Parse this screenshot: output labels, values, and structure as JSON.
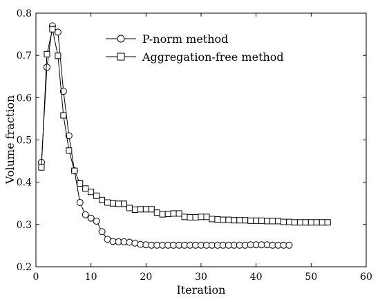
{
  "chart_data": {
    "type": "line",
    "xlabel": "Iteration",
    "ylabel": "Volume fraction",
    "xlim": [
      0,
      60
    ],
    "ylim": [
      0.2,
      0.8
    ],
    "xticks": [
      0,
      10,
      20,
      30,
      40,
      50,
      60
    ],
    "yticks": [
      0.2,
      0.3,
      0.4,
      0.5,
      0.6,
      0.7,
      0.8
    ],
    "grid": false,
    "legend_position": "top-right",
    "series": [
      {
        "name": "P-norm method",
        "marker": "circle",
        "x": [
          1,
          2,
          3,
          4,
          5,
          6,
          7,
          8,
          9,
          10,
          11,
          12,
          13,
          14,
          15,
          16,
          17,
          18,
          19,
          20,
          21,
          22,
          23,
          24,
          25,
          26,
          27,
          28,
          29,
          30,
          31,
          32,
          33,
          34,
          35,
          36,
          37,
          38,
          39,
          40,
          41,
          42,
          43,
          44,
          45,
          46
        ],
        "y": [
          0.447,
          0.672,
          0.77,
          0.755,
          0.615,
          0.51,
          0.427,
          0.352,
          0.323,
          0.315,
          0.308,
          0.283,
          0.265,
          0.26,
          0.259,
          0.259,
          0.258,
          0.256,
          0.253,
          0.252,
          0.251,
          0.251,
          0.251,
          0.251,
          0.251,
          0.251,
          0.251,
          0.251,
          0.251,
          0.251,
          0.251,
          0.251,
          0.251,
          0.251,
          0.251,
          0.251,
          0.251,
          0.251,
          0.252,
          0.252,
          0.252,
          0.252,
          0.251,
          0.251,
          0.251,
          0.251
        ]
      },
      {
        "name": "Aggregation-free method",
        "marker": "square",
        "x": [
          1,
          2,
          3,
          4,
          5,
          6,
          7,
          8,
          9,
          10,
          11,
          12,
          13,
          14,
          15,
          16,
          17,
          18,
          19,
          20,
          21,
          22,
          23,
          24,
          25,
          26,
          27,
          28,
          29,
          30,
          31,
          32,
          33,
          34,
          35,
          36,
          37,
          38,
          39,
          40,
          41,
          42,
          43,
          44,
          45,
          46,
          47,
          48,
          49,
          50,
          51,
          52,
          53
        ],
        "y": [
          0.435,
          0.703,
          0.762,
          0.699,
          0.558,
          0.475,
          0.427,
          0.397,
          0.385,
          0.377,
          0.368,
          0.358,
          0.352,
          0.35,
          0.349,
          0.349,
          0.339,
          0.335,
          0.336,
          0.336,
          0.336,
          0.328,
          0.324,
          0.325,
          0.326,
          0.326,
          0.318,
          0.317,
          0.317,
          0.318,
          0.318,
          0.313,
          0.312,
          0.311,
          0.311,
          0.31,
          0.31,
          0.31,
          0.309,
          0.309,
          0.309,
          0.308,
          0.308,
          0.308,
          0.306,
          0.306,
          0.305,
          0.305,
          0.305,
          0.305,
          0.305,
          0.305,
          0.305
        ]
      }
    ]
  }
}
